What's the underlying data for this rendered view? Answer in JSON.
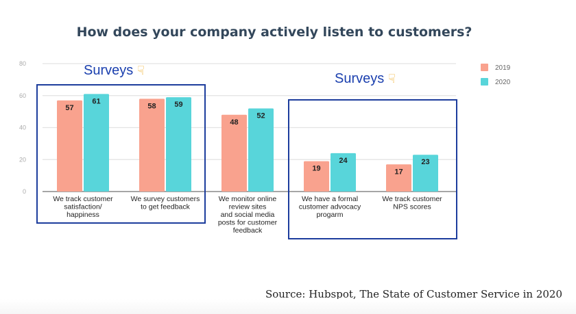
{
  "chart_data": {
    "type": "bar",
    "title": "How does your company actively listen to customers?",
    "categories": [
      [
        "We track customer",
        "satisfaction/",
        "happiness"
      ],
      [
        "We survey customers",
        "to get feedback"
      ],
      [
        "We monitor online",
        "review sites",
        "and social media",
        "posts for customer",
        "feedback"
      ],
      [
        "We have a formal",
        "customer advocacy",
        "progarm"
      ],
      [
        "We track customer",
        "NPS scores"
      ]
    ],
    "series": [
      {
        "name": "2019",
        "color": "#f9a28e",
        "values": [
          57,
          58,
          48,
          19,
          17
        ]
      },
      {
        "name": "2020",
        "color": "#58d5da",
        "values": [
          61,
          59,
          52,
          24,
          23
        ]
      }
    ],
    "yticks": [
      0,
      20,
      40,
      60,
      80
    ],
    "ylim": [
      0,
      80
    ],
    "xlabel": "",
    "ylabel": "",
    "grid": true,
    "legend": "top-right"
  },
  "annotations": {
    "left": {
      "text": "Surveys",
      "icon": "pointing-down-hand"
    },
    "right": {
      "text": "Surveys",
      "icon": "pointing-down-hand"
    }
  },
  "source": "Source: Hubspot, The State of Customer Service in 2020"
}
